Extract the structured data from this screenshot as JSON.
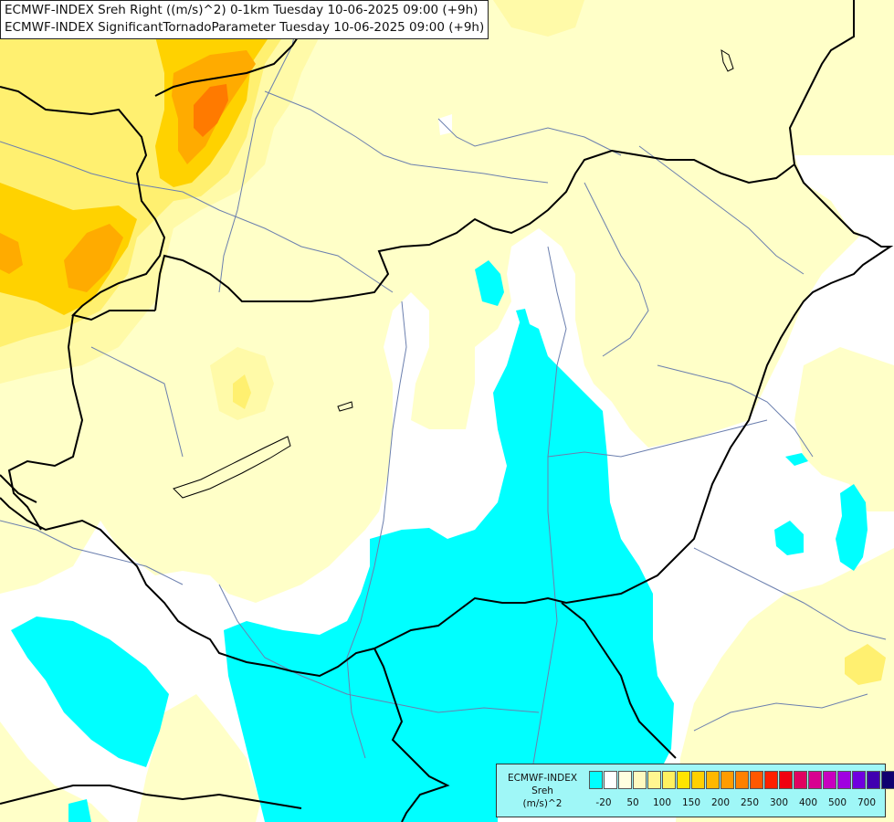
{
  "titles": [
    "ECMWF-INDEX Sreh Right ((m/s)^2) 0-1km Tuesday 10-06-2025 09:00 (+9h)",
    "ECMWF-INDEX SignificantTornadoParameter Tuesday 10-06-2025 09:00 (+9h)"
  ],
  "legend": {
    "lines": [
      "ECMWF-INDEX",
      "Sreh",
      "(m/s)^2"
    ],
    "colors": [
      "#00ffff",
      "#ffffff",
      "#ffffe0",
      "#fffac0",
      "#fff690",
      "#fff060",
      "#ffe400",
      "#ffd000",
      "#ffb800",
      "#ff9c00",
      "#ff8000",
      "#ff5800",
      "#ff2000",
      "#f00010",
      "#e00060",
      "#d80090",
      "#c800c0",
      "#a000e0",
      "#7000e0",
      "#4000b0",
      "#100070"
    ],
    "tick_labels": [
      "-20",
      "50",
      "100",
      "150",
      "200",
      "250",
      "300",
      "400",
      "500",
      "700"
    ]
  },
  "fill_colors": {
    "background": "#ffffff",
    "pale_yellow": "#ffffc8",
    "light_yellow": "#fffaa8",
    "yellow": "#fff070",
    "gold": "#ffd200",
    "orange": "#ffab00",
    "deep_orange": "#ff7a00",
    "cyan": "#00ffff",
    "river": "#6b7fae",
    "border": "#000000"
  }
}
